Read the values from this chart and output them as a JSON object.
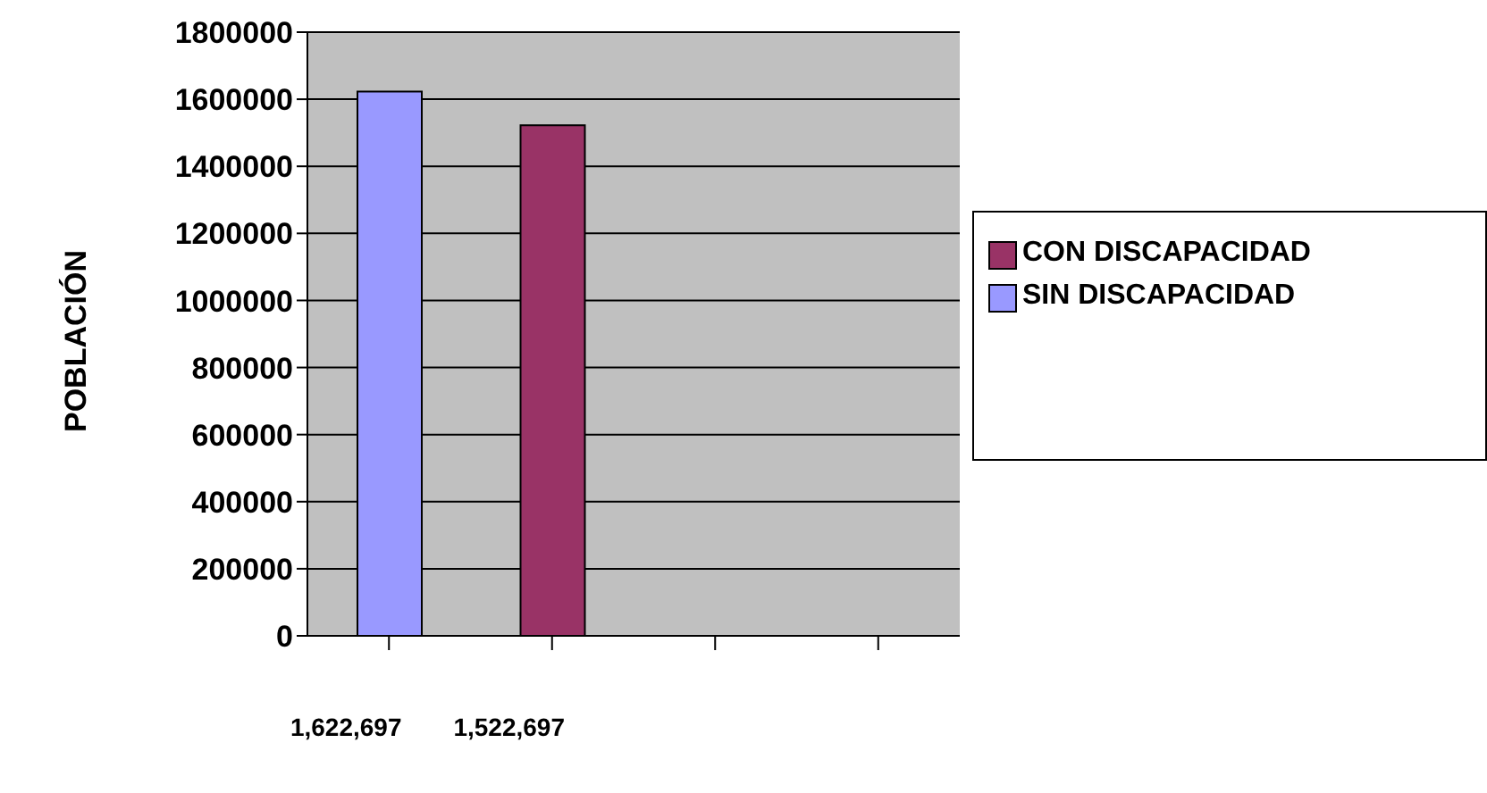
{
  "chart_data": {
    "type": "bar",
    "ylabel": "POBLACIÓN",
    "categories": [
      "1,622,697",
      "1,522,697",
      null,
      null
    ],
    "series": [
      {
        "name": "CON DISCAPACIDAD",
        "color": "#993366",
        "values": [
          null,
          1522697,
          null,
          null
        ]
      },
      {
        "name": "SIN DISCAPACIDAD",
        "color": "#9999ff",
        "values": [
          1622697,
          null,
          null,
          null
        ]
      }
    ],
    "ylim": [
      0,
      1800000
    ],
    "yticks": [
      0,
      200000,
      400000,
      600000,
      800000,
      1000000,
      1200000,
      1400000,
      1600000,
      1800000
    ],
    "grid": "y",
    "legend": "right"
  }
}
